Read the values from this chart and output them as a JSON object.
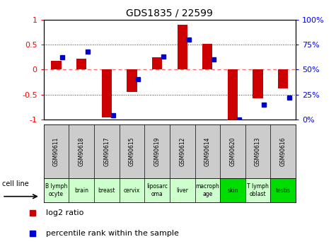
{
  "title": "GDS1835 / 22599",
  "samples": [
    "GSM90611",
    "GSM90618",
    "GSM90617",
    "GSM90615",
    "GSM90619",
    "GSM90612",
    "GSM90614",
    "GSM90620",
    "GSM90613",
    "GSM90616"
  ],
  "cell_lines": [
    "B lymph\nocyte",
    "brain",
    "breast",
    "cervix",
    "liposarc\noma",
    "liver",
    "macroph\nage",
    "skin",
    "T lymph\noblast",
    "testis"
  ],
  "cell_line_colors": [
    "#ccffcc",
    "#ccffcc",
    "#ccffcc",
    "#ccffcc",
    "#ccffcc",
    "#ccffcc",
    "#ccffcc",
    "#00dd00",
    "#ccffcc",
    "#00dd00"
  ],
  "log2_ratio": [
    0.18,
    0.22,
    -0.95,
    -0.45,
    0.25,
    0.9,
    0.52,
    -1.0,
    -0.57,
    -0.38
  ],
  "percentile_rank": [
    0.62,
    0.68,
    0.04,
    0.4,
    0.63,
    0.8,
    0.6,
    0.0,
    0.15,
    0.22
  ],
  "bar_color": "#cc0000",
  "dot_color": "#0000cc",
  "bg_color": "#ffffff",
  "plot_bg": "#ffffff",
  "sample_bg": "#cccccc",
  "ylim": [
    -1.0,
    1.0
  ],
  "yticks_left": [
    -1.0,
    -0.5,
    0.0,
    0.5,
    1.0
  ],
  "ytick_labels_left": [
    "-1",
    "-0.5",
    "0",
    "0.5",
    "1"
  ],
  "ytick_labels_right": [
    "0%",
    "25%",
    "50%",
    "75%",
    "100%"
  ],
  "bar_width": 0.4,
  "zero_line_color": "#ff6666",
  "grid_color": "#333333"
}
